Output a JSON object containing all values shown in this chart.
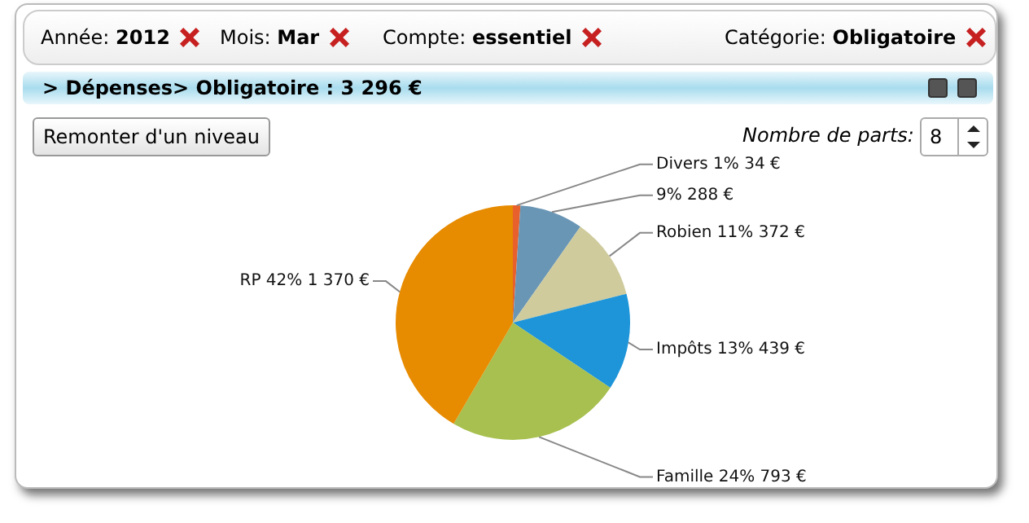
{
  "chart_data": {
    "type": "pie",
    "title": "> Dépenses> Obligatoire : 3 296 €",
    "categories": [
      "Divers",
      null,
      "Robien",
      "Impôts",
      "Famille",
      "RP"
    ],
    "values": [
      34,
      288,
      372,
      439,
      793,
      1370
    ],
    "colors": [
      "#e8602c",
      "#6a96b5",
      "#cfcb9d",
      "#1e95d9",
      "#a7c04f",
      "#e78b00"
    ],
    "value_labels": [
      "1% 34 €",
      "9% 288 €",
      "11% 372 €",
      "13% 439 €",
      "24% 793 €",
      "42% 1 370 €"
    ],
    "legend": false,
    "annotations": [
      "Année: 2012",
      "Mois: Mar",
      "Compte: essentiel",
      "Catégorie: Obligatoire",
      "Remonter d'un niveau",
      "Nombre de parts:",
      "8"
    ]
  }
}
